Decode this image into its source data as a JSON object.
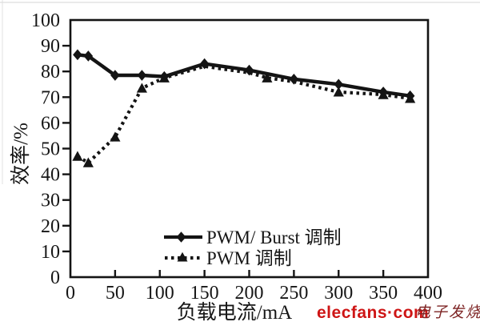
{
  "watermark": {
    "brand": "elecfans·com",
    "suffix": "电子发烧友",
    "brand_color": "#ce1515",
    "suffix_color": "#7d2424"
  },
  "chart_data": {
    "type": "line",
    "title": "",
    "xlabel": "负载电流/mA",
    "ylabel": "效率/%",
    "xlim": [
      0,
      400
    ],
    "ylim": [
      0,
      100
    ],
    "x_ticks": [
      0,
      50,
      100,
      150,
      200,
      250,
      300,
      350,
      400
    ],
    "y_ticks": [
      0,
      10,
      20,
      30,
      40,
      50,
      60,
      70,
      80,
      90,
      100
    ],
    "grid": false,
    "line_color": "#141414",
    "legend_position": "inside-bottom-center",
    "series": [
      {
        "name": "PWM/ Burst 调制",
        "line_style": "solid",
        "marker": "diamond",
        "points": [
          [
            8,
            86.5
          ],
          [
            20,
            86
          ],
          [
            50,
            78.5
          ],
          [
            80,
            78.5
          ],
          [
            105,
            78
          ],
          [
            150,
            83
          ],
          [
            200,
            80.5
          ],
          [
            250,
            77
          ],
          [
            300,
            75
          ],
          [
            350,
            72
          ],
          [
            380,
            70.5
          ]
        ]
      },
      {
        "name": "PWM 调制",
        "line_style": "dotted",
        "marker": "triangle",
        "points": [
          [
            8,
            47
          ],
          [
            20,
            44.5
          ],
          [
            50,
            54.5
          ],
          [
            80,
            73.5
          ],
          [
            105,
            77.5
          ],
          [
            150,
            82
          ],
          [
            200,
            79.5
          ],
          [
            220,
            77.5
          ],
          [
            250,
            76
          ],
          [
            300,
            72
          ],
          [
            350,
            71
          ],
          [
            380,
            69.5
          ]
        ],
        "marker_points": [
          [
            8,
            47
          ],
          [
            20,
            44.5
          ],
          [
            50,
            54.5
          ],
          [
            80,
            73.5
          ],
          [
            105,
            77.5
          ],
          [
            220,
            77.5
          ],
          [
            300,
            72
          ],
          [
            350,
            71
          ],
          [
            380,
            69.5
          ]
        ]
      }
    ]
  }
}
